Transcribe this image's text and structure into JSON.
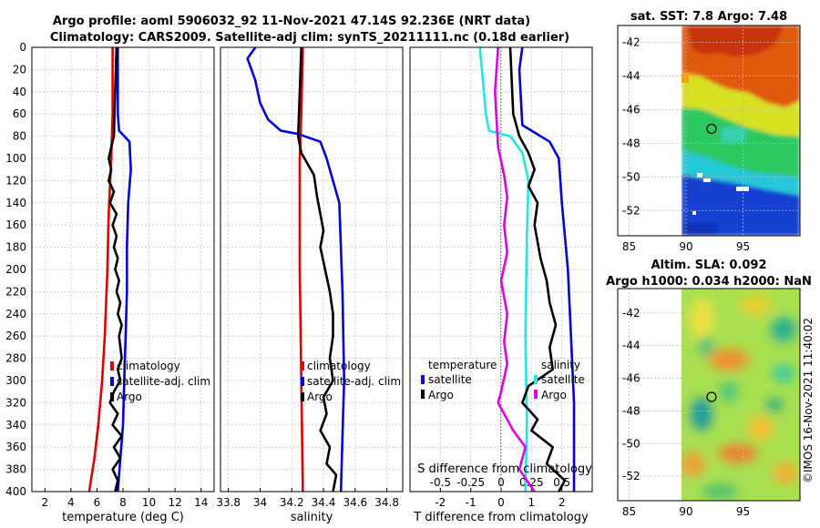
{
  "title_line1": "Argo profile: aoml 5906032_92 11-Nov-2021 47.14S 92.236E (NRT data)",
  "title_line2": "Climatology: CARS2009. Satellite-adj clim: synTS_20211111.nc (0.18d earlier)",
  "watermark": "©IMOS 16-Nov-2021 11:40:02",
  "colors": {
    "red": "#e00000",
    "blue": "#0000d8",
    "black": "#000000",
    "cyan": "#22e6e6",
    "magenta": "#e000e0"
  },
  "chart_data": [
    {
      "type": "line",
      "name": "temperature",
      "xlabel": "temperature (deg C)",
      "xlim": [
        1,
        15
      ],
      "ylim": [
        0,
        400
      ],
      "xticks": [
        "2",
        "4",
        "6",
        "8",
        "10",
        "12",
        "14"
      ],
      "xtick_values": [
        2,
        4,
        6,
        8,
        10,
        12,
        14
      ],
      "yticks": [
        "0",
        "20",
        "40",
        "60",
        "80",
        "100",
        "120",
        "140",
        "160",
        "180",
        "200",
        "220",
        "240",
        "260",
        "280",
        "300",
        "320",
        "340",
        "360",
        "380",
        "400"
      ],
      "series": [
        {
          "name": "climatology",
          "color": "#e00000",
          "points": [
            [
              7.2,
              0
            ],
            [
              7.2,
              60
            ],
            [
              7.1,
              100
            ],
            [
              6.9,
              150
            ],
            [
              6.8,
              200
            ],
            [
              6.6,
              260
            ],
            [
              6.4,
              300
            ],
            [
              6.1,
              340
            ],
            [
              5.8,
              370
            ],
            [
              5.4,
              400
            ]
          ]
        },
        {
          "name": "satellite-adj. clim",
          "color": "#0000d8",
          "points": [
            [
              7.6,
              0
            ],
            [
              7.6,
              60
            ],
            [
              7.7,
              75
            ],
            [
              8.5,
              85
            ],
            [
              8.6,
              110
            ],
            [
              8.4,
              140
            ],
            [
              8.3,
              180
            ],
            [
              8.3,
              220
            ],
            [
              8.2,
              260
            ],
            [
              8.1,
              300
            ],
            [
              8.0,
              340
            ],
            [
              7.8,
              370
            ],
            [
              7.6,
              400
            ]
          ]
        },
        {
          "name": "Argo",
          "color": "#000000",
          "points": [
            [
              7.5,
              0
            ],
            [
              7.4,
              40
            ],
            [
              7.3,
              80
            ],
            [
              7.1,
              90
            ],
            [
              6.9,
              100
            ],
            [
              7.1,
              110
            ],
            [
              6.9,
              120
            ],
            [
              7.3,
              130
            ],
            [
              7.0,
              140
            ],
            [
              7.5,
              150
            ],
            [
              7.2,
              160
            ],
            [
              7.5,
              170
            ],
            [
              7.3,
              180
            ],
            [
              7.6,
              190
            ],
            [
              7.4,
              200
            ],
            [
              7.7,
              210
            ],
            [
              7.5,
              220
            ],
            [
              7.8,
              230
            ],
            [
              7.6,
              240
            ],
            [
              7.9,
              250
            ],
            [
              7.7,
              260
            ],
            [
              7.8,
              270
            ],
            [
              7.9,
              280
            ],
            [
              7.6,
              290
            ],
            [
              7.8,
              300
            ],
            [
              7.3,
              310
            ],
            [
              7.0,
              320
            ],
            [
              7.6,
              330
            ],
            [
              7.2,
              340
            ],
            [
              7.9,
              350
            ],
            [
              7.3,
              360
            ],
            [
              7.8,
              370
            ],
            [
              7.2,
              380
            ],
            [
              7.6,
              390
            ],
            [
              7.4,
              400
            ]
          ]
        }
      ],
      "legend": {
        "position": "bottom-right",
        "entries": [
          "climatology",
          "satellite-adj. clim",
          "Argo"
        ]
      }
    },
    {
      "type": "line",
      "name": "salinity",
      "xlabel": "salinity",
      "xlim": [
        33.75,
        34.9
      ],
      "ylim": [
        0,
        400
      ],
      "xticks": [
        "33.8",
        "34",
        "34.2",
        "34.4",
        "34.6",
        "34.8"
      ],
      "xtick_values": [
        33.8,
        34.0,
        34.2,
        34.4,
        34.6,
        34.8
      ],
      "series": [
        {
          "name": "climatology",
          "color": "#e00000",
          "points": [
            [
              34.27,
              0
            ],
            [
              34.26,
              60
            ],
            [
              34.25,
              100
            ],
            [
              34.25,
              200
            ],
            [
              34.26,
              300
            ],
            [
              34.27,
              400
            ]
          ]
        },
        {
          "name": "satellite-adj. clim",
          "color": "#0000d8",
          "points": [
            [
              33.97,
              0
            ],
            [
              33.92,
              10
            ],
            [
              33.97,
              30
            ],
            [
              34.0,
              50
            ],
            [
              34.05,
              65
            ],
            [
              34.13,
              75
            ],
            [
              34.24,
              78
            ],
            [
              34.38,
              85
            ],
            [
              34.42,
              100
            ],
            [
              34.5,
              140
            ],
            [
              34.52,
              220
            ],
            [
              34.53,
              300
            ],
            [
              34.52,
              350
            ],
            [
              34.51,
              400
            ]
          ]
        },
        {
          "name": "Argo",
          "color": "#000000",
          "points": [
            [
              34.26,
              0
            ],
            [
              34.25,
              40
            ],
            [
              34.24,
              80
            ],
            [
              34.26,
              95
            ],
            [
              34.3,
              105
            ],
            [
              34.34,
              115
            ],
            [
              34.36,
              135
            ],
            [
              34.38,
              150
            ],
            [
              34.4,
              165
            ],
            [
              34.38,
              180
            ],
            [
              34.41,
              200
            ],
            [
              34.44,
              220
            ],
            [
              34.46,
              240
            ],
            [
              34.46,
              260
            ],
            [
              34.44,
              280
            ],
            [
              34.46,
              300
            ],
            [
              34.4,
              315
            ],
            [
              34.42,
              330
            ],
            [
              34.38,
              345
            ],
            [
              34.44,
              360
            ],
            [
              34.42,
              375
            ],
            [
              34.48,
              385
            ],
            [
              34.46,
              400
            ]
          ]
        }
      ],
      "legend": {
        "position": "bottom-right",
        "entries": [
          "climatology",
          "satellite-adj. clim",
          "Argo"
        ]
      }
    },
    {
      "type": "line",
      "name": "difference",
      "xlabel": "T difference from climatology",
      "xlabel_top": "S difference from climatology",
      "xlim": [
        -3,
        3
      ],
      "ylim": [
        0,
        400
      ],
      "xticks": [
        "-2",
        "-1",
        "0",
        "1",
        "2"
      ],
      "xtick_values": [
        -2,
        -1,
        0,
        1,
        2
      ],
      "top_ticks": [
        "-0.5",
        "-0.25",
        "0",
        "0.25",
        "0.5"
      ],
      "top_tick_values": [
        -2,
        -1,
        0,
        1,
        2
      ],
      "series": [
        {
          "name": "temperature satellite",
          "color": "#22e6e6",
          "points": [
            [
              -0.7,
              0
            ],
            [
              -0.6,
              30
            ],
            [
              -0.5,
              60
            ],
            [
              -0.4,
              75
            ],
            [
              0.3,
              80
            ],
            [
              0.7,
              95
            ],
            [
              0.9,
              120
            ],
            [
              0.85,
              170
            ],
            [
              0.8,
              260
            ],
            [
              0.85,
              340
            ],
            [
              0.8,
              400
            ]
          ]
        },
        {
          "name": "temperature Argo",
          "color": "#000000",
          "points": [
            [
              0.3,
              0
            ],
            [
              0.4,
              60
            ],
            [
              0.6,
              80
            ],
            [
              0.9,
              95
            ],
            [
              1.1,
              110
            ],
            [
              0.9,
              125
            ],
            [
              1.2,
              140
            ],
            [
              1.1,
              160
            ],
            [
              1.3,
              190
            ],
            [
              1.5,
              210
            ],
            [
              1.6,
              230
            ],
            [
              1.8,
              250
            ],
            [
              1.6,
              270
            ],
            [
              1.7,
              290
            ],
            [
              0.9,
              305
            ],
            [
              0.7,
              320
            ],
            [
              1.2,
              335
            ],
            [
              1.0,
              345
            ],
            [
              1.7,
              360
            ],
            [
              1.5,
              375
            ],
            [
              2.1,
              390
            ],
            [
              1.9,
              400
            ]
          ]
        },
        {
          "name": "salinity satellite",
          "color": "#0000d8",
          "points": [
            [
              0.7,
              0
            ],
            [
              0.6,
              20
            ],
            [
              0.7,
              70
            ],
            [
              1.6,
              85
            ],
            [
              1.9,
              100
            ],
            [
              2.0,
              140
            ],
            [
              2.2,
              200
            ],
            [
              2.3,
              260
            ],
            [
              2.4,
              320
            ],
            [
              2.4,
              400
            ]
          ]
        },
        {
          "name": "salinity Argo",
          "color": "#e000e0",
          "points": [
            [
              -0.1,
              0
            ],
            [
              -0.2,
              40
            ],
            [
              -0.1,
              90
            ],
            [
              0.1,
              115
            ],
            [
              0.2,
              135
            ],
            [
              0.1,
              160
            ],
            [
              0.2,
              185
            ],
            [
              0.0,
              210
            ],
            [
              0.2,
              240
            ],
            [
              0.1,
              265
            ],
            [
              0.2,
              285
            ],
            [
              0.0,
              310
            ],
            [
              -0.1,
              320
            ],
            [
              0.2,
              335
            ],
            [
              0.4,
              345
            ],
            [
              0.8,
              360
            ],
            [
              0.6,
              380
            ],
            [
              1.1,
              400
            ]
          ]
        }
      ],
      "legend_left": {
        "title": "temperature",
        "entries": [
          "satellite",
          "Argo"
        ]
      },
      "legend_right": {
        "title": "salinity",
        "entries": [
          "satellite",
          "Argo"
        ]
      }
    },
    {
      "type": "heatmap",
      "name": "sst-map",
      "title": "sat. SST: 7.8 Argo: 7.48",
      "xticks": [
        "85",
        "90",
        "95"
      ],
      "xtick_values": [
        85,
        90,
        95
      ],
      "yticks": [
        "-42",
        "-44",
        "-46",
        "-48",
        "-50",
        "-52"
      ],
      "ytick_values": [
        -42,
        -44,
        -46,
        -48,
        -50,
        -52
      ],
      "xlim": [
        84,
        100
      ],
      "ylim": [
        -53.5,
        -41
      ],
      "profile_location": [
        92.236,
        -47.14
      ]
    },
    {
      "type": "heatmap",
      "name": "sla-map",
      "title_line1": "Altim. SLA: 0.092",
      "title_line2": "Argo h1000: 0.034 h2000: NaN",
      "xticks": [
        "85",
        "90",
        "95"
      ],
      "xtick_values": [
        85,
        90,
        95
      ],
      "yticks": [
        "-42",
        "-44",
        "-46",
        "-48",
        "-50",
        "-52"
      ],
      "ytick_values": [
        -42,
        -44,
        -46,
        -48,
        -50,
        -52
      ],
      "xlim": [
        84,
        100
      ],
      "ylim": [
        -53.5,
        -40.5
      ],
      "profile_location": [
        92.236,
        -47.14
      ]
    }
  ]
}
